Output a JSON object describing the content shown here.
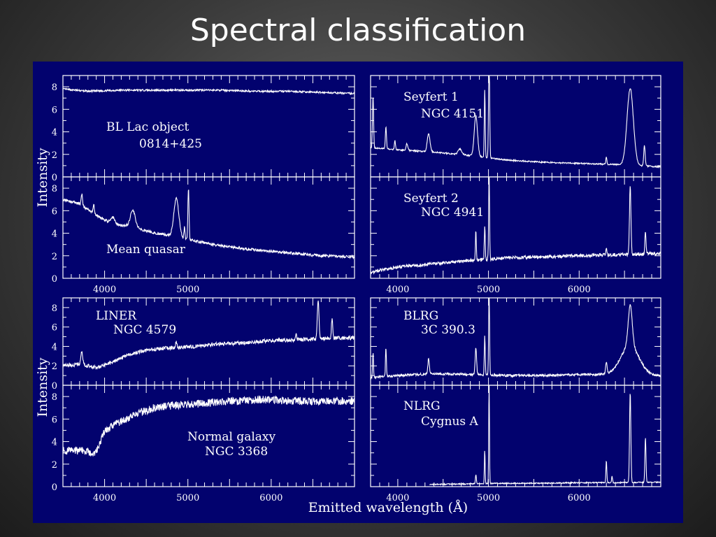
{
  "slide": {
    "title": "Spectral classification"
  },
  "figure": {
    "background": "#02026e",
    "line_color": "#ffffff",
    "ylabel": "Intensity",
    "xlabel": "Emitted wavelength (Å)"
  },
  "chart_data": [
    {
      "type": "line",
      "id": "bl-lac",
      "label_lines": [
        "BL Lac object",
        "0814+425"
      ],
      "xlim": [
        3500,
        7000
      ],
      "ylim": [
        0,
        9
      ],
      "yticks": [
        0,
        2,
        4,
        6,
        8
      ],
      "x": [
        3500,
        3800,
        4200,
        4600,
        5000,
        5400,
        5800,
        6200,
        6600,
        7000
      ],
      "y": [
        7.8,
        7.6,
        7.7,
        7.7,
        7.7,
        7.7,
        7.6,
        7.6,
        7.5,
        7.4
      ],
      "noise": 0.08,
      "lines": []
    },
    {
      "type": "line",
      "id": "mean-quasar",
      "label_lines": [
        "Mean quasar"
      ],
      "xlim": [
        3500,
        7000
      ],
      "ylim": [
        0,
        9
      ],
      "yticks": [
        0,
        2,
        4,
        6,
        8
      ],
      "xticks": [
        4000,
        5000
      ],
      "x": [
        3500,
        3700,
        3900,
        4100,
        4300,
        4500,
        4700,
        4900,
        5100,
        5300,
        5500,
        5700,
        6000,
        6300,
        6600,
        7000
      ],
      "y": [
        7.0,
        6.6,
        5.6,
        4.8,
        4.6,
        4.2,
        3.9,
        3.6,
        3.3,
        3.0,
        2.8,
        2.6,
        2.4,
        2.2,
        2.0,
        1.9
      ],
      "noise": 0.12,
      "lines": [
        {
          "x": 3727,
          "h": 1.0,
          "w": 8
        },
        {
          "x": 3869,
          "h": 0.8,
          "w": 8
        },
        {
          "x": 4101,
          "h": 0.6,
          "w": 25
        },
        {
          "x": 4340,
          "h": 1.5,
          "w": 30
        },
        {
          "x": 4861,
          "h": 3.4,
          "w": 30
        },
        {
          "x": 4959,
          "h": 1.0,
          "w": 6
        },
        {
          "x": 5007,
          "h": 4.6,
          "w": 7
        }
      ]
    },
    {
      "type": "line",
      "id": "seyfert-1",
      "label_lines": [
        "Seyfert 1",
        "NGC 4151"
      ],
      "xlim": [
        3700,
        6900
      ],
      "ylim": [
        0,
        9
      ],
      "x": [
        3700,
        4000,
        4400,
        4800,
        5200,
        5600,
        6000,
        6400,
        6900
      ],
      "y": [
        2.6,
        2.4,
        2.2,
        1.9,
        1.5,
        1.3,
        1.2,
        1.1,
        0.9
      ],
      "noise": 0.06,
      "lines": [
        {
          "x": 3727,
          "h": 4.6,
          "w": 6
        },
        {
          "x": 3869,
          "h": 2.0,
          "w": 6
        },
        {
          "x": 3968,
          "h": 0.8,
          "w": 6
        },
        {
          "x": 4101,
          "h": 0.6,
          "w": 10
        },
        {
          "x": 4340,
          "h": 1.6,
          "w": 15
        },
        {
          "x": 4686,
          "h": 0.5,
          "w": 20
        },
        {
          "x": 4861,
          "h": 3.6,
          "w": 18
        },
        {
          "x": 4959,
          "h": 6.0,
          "w": 5
        },
        {
          "x": 5007,
          "h": 9.5,
          "w": 6
        },
        {
          "x": 6300,
          "h": 0.7,
          "w": 5
        },
        {
          "x": 6563,
          "h": 6.8,
          "w": 35
        },
        {
          "x": 6720,
          "h": 1.8,
          "w": 8
        }
      ]
    },
    {
      "type": "line",
      "id": "seyfert-2",
      "label_lines": [
        "Seyfert 2",
        "NGC 4941"
      ],
      "xlim": [
        3700,
        6900
      ],
      "ylim": [
        0,
        9
      ],
      "xticks": [
        4000,
        5000,
        6000
      ],
      "x": [
        3700,
        3800,
        4000,
        4400,
        4800,
        5200,
        5600,
        6000,
        6400,
        6900
      ],
      "y": [
        0.5,
        0.7,
        1.0,
        1.3,
        1.6,
        1.8,
        1.9,
        2.0,
        2.1,
        2.2
      ],
      "noise": 0.15,
      "lines": [
        {
          "x": 4861,
          "h": 2.6,
          "w": 5
        },
        {
          "x": 4959,
          "h": 3.0,
          "w": 5
        },
        {
          "x": 5007,
          "h": 7.6,
          "w": 5
        },
        {
          "x": 6300,
          "h": 0.6,
          "w": 5
        },
        {
          "x": 6563,
          "h": 6.0,
          "w": 8
        },
        {
          "x": 6731,
          "h": 2.0,
          "w": 6
        }
      ]
    },
    {
      "type": "line",
      "id": "liner",
      "label_lines": [
        "LINER",
        "NGC 4579"
      ],
      "xlim": [
        3500,
        7000
      ],
      "ylim": [
        0,
        9
      ],
      "yticks": [
        0,
        2,
        4,
        6,
        8
      ],
      "x": [
        3500,
        3700,
        3900,
        4100,
        4300,
        4500,
        4700,
        4900,
        5100,
        5300,
        5500,
        5700,
        6000,
        6300,
        6600,
        7000
      ],
      "y": [
        2.0,
        2.2,
        1.8,
        2.4,
        3.2,
        3.6,
        3.8,
        3.9,
        4.0,
        4.2,
        4.3,
        4.4,
        4.6,
        4.7,
        4.8,
        4.9
      ],
      "noise": 0.2,
      "lines": [
        {
          "x": 3727,
          "h": 1.4,
          "w": 10
        },
        {
          "x": 4861,
          "h": 0.6,
          "w": 8
        },
        {
          "x": 6300,
          "h": 0.8,
          "w": 6
        },
        {
          "x": 6563,
          "h": 4.0,
          "w": 10
        },
        {
          "x": 6731,
          "h": 2.0,
          "w": 8
        }
      ]
    },
    {
      "type": "line",
      "id": "normal-galaxy",
      "label_lines": [
        "Normal galaxy",
        "NGC 3368"
      ],
      "xlim": [
        3500,
        7000
      ],
      "ylim": [
        0,
        9
      ],
      "yticks": [
        0,
        2,
        4,
        6,
        8
      ],
      "xticks": [
        4000,
        5000,
        6000
      ],
      "x": [
        3500,
        3700,
        3900,
        4000,
        4200,
        4400,
        4600,
        4800,
        5000,
        5200,
        5400,
        5600,
        5800,
        6000,
        6300,
        6600,
        7000
      ],
      "y": [
        3.2,
        3.2,
        3.0,
        5.0,
        5.8,
        6.5,
        7.0,
        7.2,
        7.3,
        7.4,
        7.5,
        7.6,
        7.7,
        7.7,
        7.6,
        7.6,
        7.6
      ],
      "noise": 0.35,
      "lines": []
    },
    {
      "type": "line",
      "id": "blrg",
      "label_lines": [
        "BLRG",
        "3C 390.3"
      ],
      "xlim": [
        3700,
        6900
      ],
      "ylim": [
        0,
        9
      ],
      "x": [
        3700,
        4000,
        4400,
        4800,
        5200,
        5600,
        6000,
        6400,
        6900
      ],
      "y": [
        0.8,
        1.0,
        1.2,
        1.1,
        1.0,
        1.0,
        1.1,
        1.1,
        1.0
      ],
      "noise": 0.12,
      "lines": [
        {
          "x": 3727,
          "h": 2.5,
          "w": 5
        },
        {
          "x": 3869,
          "h": 3.0,
          "w": 5
        },
        {
          "x": 4340,
          "h": 1.6,
          "w": 8
        },
        {
          "x": 4861,
          "h": 2.8,
          "w": 8
        },
        {
          "x": 4959,
          "h": 4.0,
          "w": 5
        },
        {
          "x": 5007,
          "h": 9.0,
          "w": 5
        },
        {
          "x": 6300,
          "h": 1.2,
          "w": 8
        },
        {
          "x": 6560,
          "h": 3.0,
          "w": 100
        },
        {
          "x": 6563,
          "h": 4.2,
          "w": 22
        }
      ]
    },
    {
      "type": "line",
      "id": "nlrg",
      "label_lines": [
        "NLRG",
        "Cygnus A"
      ],
      "xlim": [
        3700,
        6900
      ],
      "ylim": [
        0,
        9
      ],
      "xticks": [
        4000,
        5000,
        6000
      ],
      "x": [
        4350,
        4800,
        5200,
        5600,
        6000,
        6400,
        6900
      ],
      "y": [
        0.2,
        0.25,
        0.3,
        0.3,
        0.35,
        0.35,
        0.4
      ],
      "noise": 0.05,
      "lines": [
        {
          "x": 4861,
          "h": 0.8,
          "w": 5
        },
        {
          "x": 4959,
          "h": 3.0,
          "w": 4
        },
        {
          "x": 5007,
          "h": 9.0,
          "w": 4
        },
        {
          "x": 6300,
          "h": 2.0,
          "w": 5
        },
        {
          "x": 6363,
          "h": 0.6,
          "w": 5
        },
        {
          "x": 6563,
          "h": 8.0,
          "w": 7
        },
        {
          "x": 6731,
          "h": 4.0,
          "w": 6
        }
      ]
    }
  ]
}
